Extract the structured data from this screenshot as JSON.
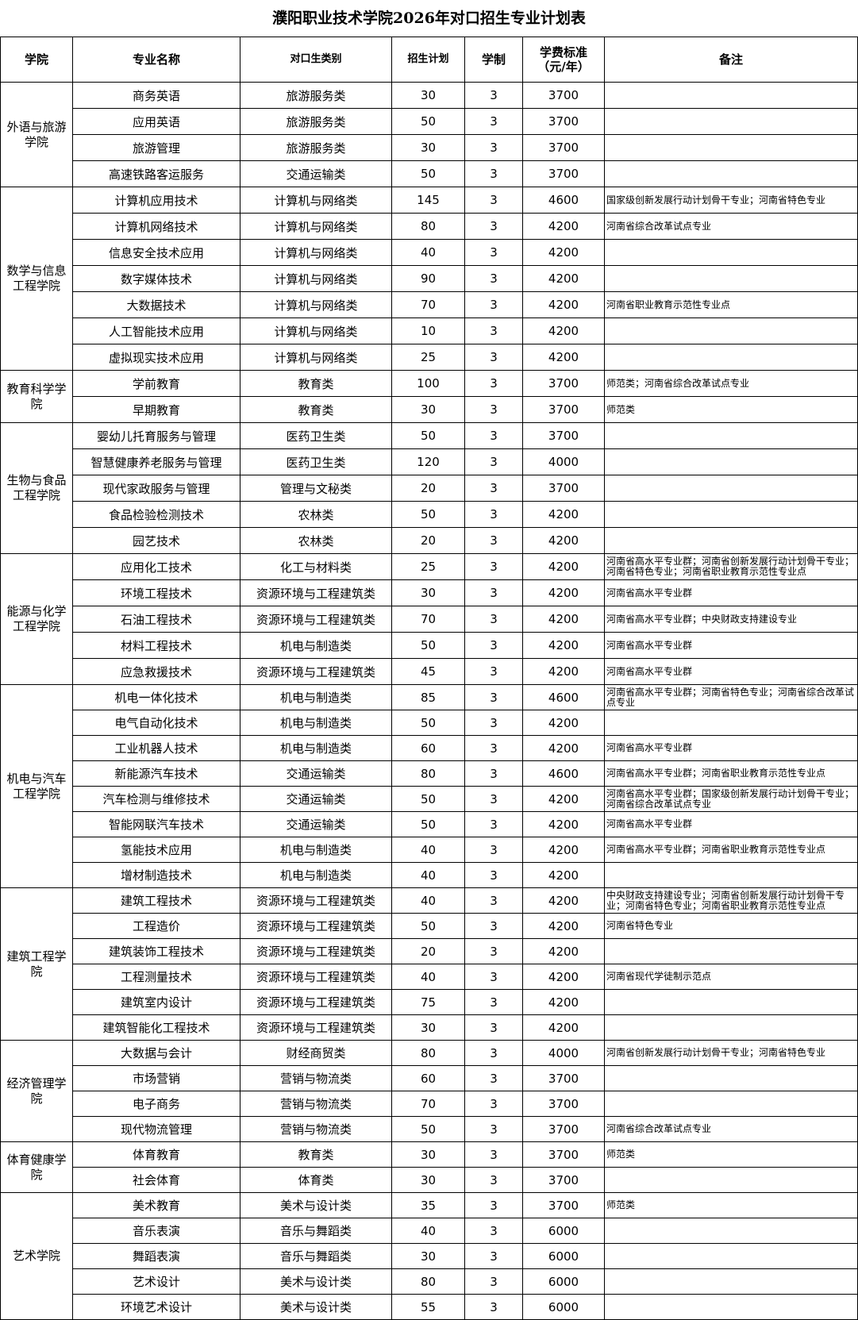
{
  "title": "濮阳职业技术学院2026年对口招生专业计划表",
  "headers": [
    "学院",
    "专业名称",
    "对口生类别",
    "招生计划",
    "学制",
    "学费标准\n（元/年）",
    "备注"
  ],
  "colleges": [
    {
      "name": "外语与旅游学院",
      "rows": [
        [
          "商务英语",
          "旅游服务类",
          "30",
          "3",
          "3700",
          ""
        ],
        [
          "应用英语",
          "旅游服务类",
          "50",
          "3",
          "3700",
          ""
        ],
        [
          "旅游管理",
          "旅游服务类",
          "30",
          "3",
          "3700",
          ""
        ],
        [
          "高速铁路客运服务",
          "交通运输类",
          "50",
          "3",
          "3700",
          ""
        ]
      ]
    },
    {
      "name": "数学与信息工程学院",
      "rows": [
        [
          "计算机应用技术",
          "计算机与网络类",
          "145",
          "3",
          "4600",
          "国家级创新发展行动计划骨干专业；河南省特色专业"
        ],
        [
          "计算机网络技术",
          "计算机与网络类",
          "80",
          "3",
          "4200",
          "河南省综合改革试点专业"
        ],
        [
          "信息安全技术应用",
          "计算机与网络类",
          "40",
          "3",
          "4200",
          ""
        ],
        [
          "数字媒体技术",
          "计算机与网络类",
          "90",
          "3",
          "4200",
          ""
        ],
        [
          "大数据技术",
          "计算机与网络类",
          "70",
          "3",
          "4200",
          "河南省职业教育示范性专业点"
        ],
        [
          "人工智能技术应用",
          "计算机与网络类",
          "10",
          "3",
          "4200",
          ""
        ],
        [
          "虚拟现实技术应用",
          "计算机与网络类",
          "25",
          "3",
          "4200",
          ""
        ]
      ]
    },
    {
      "name": "教育科学学院",
      "rows": [
        [
          "学前教育",
          "教育类",
          "100",
          "3",
          "3700",
          "师范类；河南省综合改革试点专业"
        ],
        [
          "早期教育",
          "教育类",
          "30",
          "3",
          "3700",
          "师范类"
        ]
      ]
    },
    {
      "name": "生物与食品工程学院",
      "rows": [
        [
          "婴幼儿托育服务与管理",
          "医药卫生类",
          "50",
          "3",
          "3700",
          ""
        ],
        [
          "智慧健康养老服务与管理",
          "医药卫生类",
          "120",
          "3",
          "4000",
          ""
        ],
        [
          "现代家政服务与管理",
          "管理与文秘类",
          "20",
          "3",
          "3700",
          ""
        ],
        [
          "食品检验检测技术",
          "农林类",
          "50",
          "3",
          "4200",
          ""
        ],
        [
          "园艺技术",
          "农林类",
          "20",
          "3",
          "4200",
          ""
        ]
      ]
    },
    {
      "name": "能源与化学工程学院",
      "rows": [
        [
          "应用化工技术",
          "化工与材料类",
          "25",
          "3",
          "4200",
          "河南省高水平专业群；河南省创新发展行动计划骨干专业；河南省特色专业；河南省职业教育示范性专业点"
        ],
        [
          "环境工程技术",
          "资源环境与工程建筑类",
          "30",
          "3",
          "4200",
          "河南省高水平专业群"
        ],
        [
          "石油工程技术",
          "资源环境与工程建筑类",
          "70",
          "3",
          "4200",
          "河南省高水平专业群；中央财政支持建设专业"
        ],
        [
          "材料工程技术",
          "机电与制造类",
          "50",
          "3",
          "4200",
          "河南省高水平专业群"
        ],
        [
          "应急救援技术",
          "资源环境与工程建筑类",
          "45",
          "3",
          "4200",
          "河南省高水平专业群"
        ]
      ]
    },
    {
      "name": "机电与汽车工程学院",
      "rows": [
        [
          "机电一体化技术",
          "机电与制造类",
          "85",
          "3",
          "4600",
          "河南省高水平专业群；河南省特色专业；河南省综合改革试点专业"
        ],
        [
          "电气自动化技术",
          "机电与制造类",
          "50",
          "3",
          "4200",
          ""
        ],
        [
          "工业机器人技术",
          "机电与制造类",
          "60",
          "3",
          "4200",
          "河南省高水平专业群"
        ],
        [
          "新能源汽车技术",
          "交通运输类",
          "80",
          "3",
          "4600",
          "河南省高水平专业群；河南省职业教育示范性专业点"
        ],
        [
          "汽车检测与维修技术",
          "交通运输类",
          "50",
          "3",
          "4200",
          "河南省高水平专业群；国家级创新发展行动计划骨干专业；河南省综合改革试点专业"
        ],
        [
          "智能网联汽车技术",
          "交通运输类",
          "50",
          "3",
          "4200",
          "河南省高水平专业群"
        ],
        [
          "氢能技术应用",
          "机电与制造类",
          "40",
          "3",
          "4200",
          "河南省高水平专业群；河南省职业教育示范性专业点"
        ],
        [
          "增材制造技术",
          "机电与制造类",
          "40",
          "3",
          "4200",
          ""
        ]
      ]
    },
    {
      "name": "建筑工程学院",
      "rows": [
        [
          "建筑工程技术",
          "资源环境与工程建筑类",
          "40",
          "3",
          "4200",
          "中央财政支持建设专业；河南省创新发展行动计划骨干专业；河南省特色专业；河南省职业教育示范性专业点"
        ],
        [
          "工程造价",
          "资源环境与工程建筑类",
          "50",
          "3",
          "4200",
          "河南省特色专业"
        ],
        [
          "建筑装饰工程技术",
          "资源环境与工程建筑类",
          "20",
          "3",
          "4200",
          ""
        ],
        [
          "工程测量技术",
          "资源环境与工程建筑类",
          "40",
          "3",
          "4200",
          "河南省现代学徒制示范点"
        ],
        [
          "建筑室内设计",
          "资源环境与工程建筑类",
          "75",
          "3",
          "4200",
          ""
        ],
        [
          "建筑智能化工程技术",
          "资源环境与工程建筑类",
          "30",
          "3",
          "4200",
          ""
        ]
      ]
    },
    {
      "name": "经济管理学院",
      "rows": [
        [
          "大数据与会计",
          "财经商贸类",
          "80",
          "3",
          "4000",
          "河南省创新发展行动计划骨干专业；河南省特色专业"
        ],
        [
          "市场营销",
          "营销与物流类",
          "60",
          "3",
          "3700",
          ""
        ],
        [
          "电子商务",
          "营销与物流类",
          "70",
          "3",
          "3700",
          ""
        ],
        [
          "现代物流管理",
          "营销与物流类",
          "50",
          "3",
          "3700",
          "河南省综合改革试点专业"
        ]
      ]
    },
    {
      "name": "体育健康学院",
      "rows": [
        [
          "体育教育",
          "教育类",
          "30",
          "3",
          "3700",
          "师范类"
        ],
        [
          "社会体育",
          "体育类",
          "30",
          "3",
          "3700",
          ""
        ]
      ]
    },
    {
      "name": "艺术学院",
      "rows": [
        [
          "美术教育",
          "美术与设计类",
          "35",
          "3",
          "3700",
          "师范类"
        ],
        [
          "音乐表演",
          "音乐与舞蹈类",
          "40",
          "3",
          "6000",
          ""
        ],
        [
          "舞蹈表演",
          "音乐与舞蹈类",
          "30",
          "3",
          "6000",
          ""
        ],
        [
          "艺术设计",
          "美术与设计类",
          "80",
          "3",
          "6000",
          ""
        ],
        [
          "环境艺术设计",
          "美术与设计类",
          "55",
          "3",
          "6000",
          ""
        ]
      ]
    }
  ]
}
